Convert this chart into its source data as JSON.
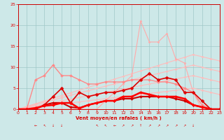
{
  "bg_color": "#cde8e8",
  "grid_color": "#a0c8c8",
  "xlabel": "Vent moyen/en rafales ( km/h )",
  "xlim": [
    0,
    23
  ],
  "ylim": [
    0,
    25
  ],
  "xticks": [
    0,
    1,
    2,
    3,
    4,
    5,
    6,
    7,
    8,
    9,
    10,
    11,
    12,
    13,
    14,
    15,
    16,
    17,
    18,
    19,
    20,
    21,
    22,
    23
  ],
  "yticks": [
    0,
    5,
    10,
    15,
    20,
    25
  ],
  "series": [
    {
      "comment": "light pink diagonal trend line 1 - lowest slope",
      "x": [
        0,
        20
      ],
      "y": [
        0,
        5
      ],
      "color": "#ffbbbb",
      "lw": 0.8,
      "marker": "D",
      "ms": 1.5,
      "full_x": [
        0,
        1,
        2,
        3,
        4,
        5,
        6,
        7,
        8,
        9,
        10,
        11,
        12,
        13,
        14,
        15,
        16,
        17,
        18,
        19,
        20,
        21,
        22,
        23
      ],
      "full_y": [
        0,
        0.25,
        0.5,
        0.75,
        1.0,
        1.25,
        1.5,
        1.75,
        2.0,
        2.25,
        2.5,
        2.75,
        3.0,
        3.25,
        3.5,
        3.75,
        4.0,
        4.25,
        4.5,
        4.75,
        5.0,
        4.5,
        4.0,
        3.5
      ]
    },
    {
      "comment": "light pink diagonal trend line 2",
      "x": [
        0,
        21
      ],
      "y": [
        0,
        8
      ],
      "color": "#ffbbbb",
      "lw": 0.8,
      "marker": "D",
      "ms": 1.5,
      "full_x": [
        0,
        1,
        2,
        3,
        4,
        5,
        6,
        7,
        8,
        9,
        10,
        11,
        12,
        13,
        14,
        15,
        16,
        17,
        18,
        19,
        20,
        21,
        22,
        23
      ],
      "full_y": [
        0,
        0.4,
        0.8,
        1.2,
        1.6,
        2.0,
        2.4,
        2.8,
        3.2,
        3.6,
        4.0,
        4.4,
        4.8,
        5.2,
        5.6,
        6.0,
        6.4,
        6.8,
        7.2,
        7.6,
        8.0,
        7.5,
        7.0,
        6.5
      ]
    },
    {
      "comment": "light pink diagonal trend line 3",
      "x": [
        0,
        21
      ],
      "y": [
        0,
        11
      ],
      "color": "#ffbbbb",
      "lw": 0.8,
      "marker": "D",
      "ms": 1.5,
      "full_x": [
        0,
        1,
        2,
        3,
        4,
        5,
        6,
        7,
        8,
        9,
        10,
        11,
        12,
        13,
        14,
        15,
        16,
        17,
        18,
        19,
        20,
        21,
        22,
        23
      ],
      "full_y": [
        0,
        0.55,
        1.1,
        1.65,
        2.2,
        2.75,
        3.3,
        3.85,
        4.4,
        4.95,
        5.5,
        6.0,
        6.5,
        7.0,
        7.5,
        8.0,
        8.5,
        9.0,
        9.5,
        10.0,
        10.5,
        10.0,
        9.5,
        9.0
      ]
    },
    {
      "comment": "light pink diagonal trend line 4 - highest slope",
      "x": [
        0,
        21
      ],
      "y": [
        0,
        13.5
      ],
      "color": "#ffbbbb",
      "lw": 0.8,
      "marker": "D",
      "ms": 1.5,
      "full_x": [
        0,
        1,
        2,
        3,
        4,
        5,
        6,
        7,
        8,
        9,
        10,
        11,
        12,
        13,
        14,
        15,
        16,
        17,
        18,
        19,
        20,
        21,
        22,
        23
      ],
      "full_y": [
        0,
        0.65,
        1.3,
        1.95,
        2.6,
        3.25,
        3.9,
        4.55,
        5.2,
        5.85,
        6.5,
        7.15,
        7.8,
        8.45,
        9.1,
        9.75,
        10.4,
        11.05,
        11.7,
        12.35,
        13.0,
        12.5,
        12.0,
        11.5
      ]
    },
    {
      "comment": "pink jagged line with peak at 21 (x=14-15)",
      "full_x": [
        0,
        1,
        2,
        3,
        4,
        5,
        6,
        7,
        8,
        9,
        10,
        11,
        12,
        13,
        14,
        15,
        16,
        17,
        18,
        19,
        20,
        21,
        22,
        23
      ],
      "full_y": [
        0,
        0,
        0,
        0,
        0,
        0,
        0,
        0,
        0,
        0,
        2,
        4,
        6,
        8,
        21,
        16,
        16,
        18,
        12,
        11,
        4,
        0,
        0,
        0
      ],
      "color": "#ffaaaa",
      "lw": 0.8,
      "marker": "D",
      "ms": 1.5
    },
    {
      "comment": "red jagged line - peak around x=3-4 at y=8-10",
      "full_x": [
        0,
        1,
        2,
        3,
        4,
        5,
        6,
        7,
        8,
        9,
        10,
        11,
        12,
        13,
        14,
        15,
        16,
        17,
        18,
        19,
        20,
        21,
        22,
        23
      ],
      "full_y": [
        0,
        0,
        7,
        8,
        10.5,
        8,
        8,
        7,
        6,
        6,
        6.5,
        6.5,
        6.5,
        7,
        7,
        7,
        6.5,
        6.5,
        6,
        5,
        4,
        1,
        0,
        0
      ],
      "color": "#ff8888",
      "lw": 1.0,
      "marker": "D",
      "ms": 2.0
    },
    {
      "comment": "dark red line - lower jagged with peak x=14-15 at y=8",
      "full_x": [
        0,
        1,
        2,
        3,
        4,
        5,
        6,
        7,
        8,
        9,
        10,
        11,
        12,
        13,
        14,
        15,
        16,
        17,
        18,
        19,
        20,
        21,
        22,
        23
      ],
      "full_y": [
        0,
        0,
        0,
        1,
        3,
        5,
        1.5,
        4,
        3,
        3.5,
        4,
        4,
        4.5,
        5,
        7,
        8.5,
        7,
        7.5,
        7,
        4,
        4,
        2,
        0,
        0
      ],
      "color": "#dd0000",
      "lw": 1.2,
      "marker": "D",
      "ms": 2.5
    },
    {
      "comment": "dark red line bottom - mostly flat near 0-2",
      "full_x": [
        0,
        1,
        2,
        3,
        4,
        5,
        6,
        7,
        8,
        9,
        10,
        11,
        12,
        13,
        14,
        15,
        16,
        17,
        18,
        19,
        20,
        21,
        22,
        23
      ],
      "full_y": [
        0,
        0,
        0,
        1,
        1.5,
        1.5,
        0.5,
        0.3,
        1,
        1.5,
        2,
        2,
        2.5,
        2.5,
        3,
        3,
        3,
        3,
        2.5,
        2,
        1,
        0.5,
        0,
        0
      ],
      "color": "#cc0000",
      "lw": 1.5,
      "marker": "D",
      "ms": 2.0
    },
    {
      "comment": "darkest red - thicker line near base",
      "full_x": [
        0,
        1,
        2,
        3,
        4,
        5,
        6,
        7,
        8,
        9,
        10,
        11,
        12,
        13,
        14,
        15,
        16,
        17,
        18,
        19,
        20,
        21,
        22,
        23
      ],
      "full_y": [
        0,
        0,
        0.3,
        0.8,
        1,
        1.5,
        1.5,
        0.2,
        1,
        1.5,
        2,
        2,
        3,
        3,
        4,
        3.5,
        3,
        3,
        3,
        2.5,
        1,
        0.5,
        0,
        0
      ],
      "color": "#ff0000",
      "lw": 1.8,
      "marker": "D",
      "ms": 2.0
    }
  ],
  "wind_arrow_positions": [
    {
      "x": 2,
      "symbol": "←"
    },
    {
      "x": 3,
      "symbol": "↖"
    },
    {
      "x": 4,
      "symbol": "↓"
    },
    {
      "x": 5,
      "symbol": "↓"
    },
    {
      "x": 9,
      "symbol": "↖"
    },
    {
      "x": 10,
      "symbol": "↖"
    },
    {
      "x": 11,
      "symbol": "←"
    },
    {
      "x": 12,
      "symbol": "↗"
    },
    {
      "x": 13,
      "symbol": "↗"
    },
    {
      "x": 14,
      "symbol": "↑"
    },
    {
      "x": 15,
      "symbol": "↗"
    },
    {
      "x": 16,
      "symbol": "↗"
    },
    {
      "x": 17,
      "symbol": "↗"
    },
    {
      "x": 18,
      "symbol": "↗"
    },
    {
      "x": 19,
      "symbol": "↗"
    },
    {
      "x": 20,
      "symbol": "↓"
    }
  ],
  "text_color": "#dd0000",
  "axis_color": "#cc0000",
  "tick_color": "#dd0000"
}
